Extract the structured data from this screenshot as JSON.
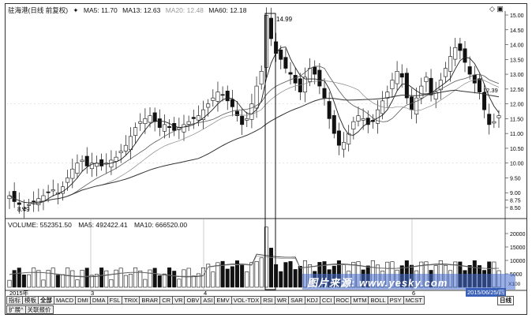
{
  "header": {
    "stock": "驻海港(日线 前复权)",
    "arrow": "✦",
    "ma5": "MA5: 11.70",
    "ma13": "MA13: 12.63",
    "ma20": "MA20: 12.48",
    "ma60": "MA60: 12.18",
    "right_icons": "◇ ▣"
  },
  "price_axis": [
    "15.00",
    "14.50",
    "14.00",
    "13.50",
    "13.00",
    "12.50",
    "12.00",
    "11.50",
    "11.00",
    "10.50",
    "10.00",
    "9.50",
    "9.00",
    "8.75",
    "8.50"
  ],
  "annotations": {
    "high": "14.99",
    "low": "8.49",
    "current": "12.39"
  },
  "volume_header": {
    "volume": "VOLUME: 552351.50",
    "ma5": "MA5: 492422.41",
    "ma10": "MA10: 666520.00"
  },
  "volume_axis": [
    "20000",
    "15000",
    "10000",
    "5000",
    "X100"
  ],
  "time_axis": {
    "start": "2015年",
    "m3": "3",
    "m4": "4",
    "m6": "6",
    "end_date": "2015/06/25/四"
  },
  "watermark": "图片来源: www.yesky.com",
  "tabs_row1": [
    "指标",
    "模板",
    "全部",
    "MACD",
    "DMI",
    "DMA",
    "FSL",
    "TRIX",
    "BRAR",
    "CR",
    "VR",
    "OBV",
    "ASI",
    "EMV",
    "VOL-TDX",
    "RSI",
    "WR",
    "SAR",
    "KDJ",
    "CCI",
    "ROC",
    "MTM",
    "BOLL",
    "PSY",
    "MCST"
  ],
  "tabs_row2": [
    "扩展^",
    "关联报价"
  ],
  "right_tabs": [
    "日线"
  ],
  "colors": {
    "up": "#ffffff",
    "down": "#111111",
    "ma5": "#222222",
    "ma13": "#555555",
    "ma20": "#888888",
    "ma60": "#333333"
  }
}
